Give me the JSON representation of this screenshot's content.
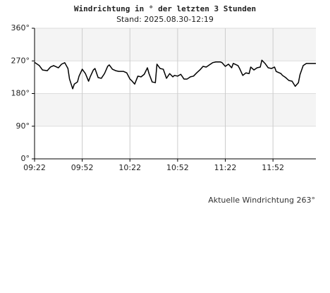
{
  "chart_data": {
    "type": "line",
    "title": "Windrichtung in ° der letzten 3 Stunden",
    "subtitle": "Stand: 2025.08.30-12:19",
    "annotation": "Aktuelle Windrichtung 263°",
    "x": [
      "09:22",
      "09:25",
      "09:27",
      "09:30",
      "09:32",
      "09:34",
      "09:37",
      "09:39",
      "09:41",
      "09:43",
      "09:44",
      "09:46",
      "09:47",
      "09:49",
      "09:50",
      "09:52",
      "09:54",
      "09:56",
      "09:57",
      "09:59",
      "10:00",
      "10:02",
      "10:04",
      "10:06",
      "10:08",
      "10:09",
      "10:11",
      "10:13",
      "10:15",
      "10:18",
      "10:20",
      "10:22",
      "10:23",
      "10:25",
      "10:27",
      "10:29",
      "10:31",
      "10:33",
      "10:34",
      "10:36",
      "10:38",
      "10:39",
      "10:41",
      "10:43",
      "10:45",
      "10:47",
      "10:49",
      "10:50",
      "10:52",
      "10:54",
      "10:56",
      "10:58",
      "11:00",
      "11:02",
      "11:04",
      "11:06",
      "11:08",
      "11:10",
      "11:12",
      "11:14",
      "11:16",
      "11:19",
      "11:20",
      "11:22",
      "11:24",
      "11:26",
      "11:27",
      "11:30",
      "11:31",
      "11:33",
      "11:35",
      "11:37",
      "11:38",
      "11:40",
      "11:42",
      "11:44",
      "11:45",
      "11:47",
      "11:49",
      "11:51",
      "11:53",
      "11:54",
      "11:57",
      "11:58",
      "12:00",
      "12:02",
      "12:04",
      "12:06",
      "12:08",
      "12:09",
      "12:11",
      "12:13",
      "12:15",
      "12:19"
    ],
    "values": [
      266,
      257,
      245,
      243,
      253,
      257,
      251,
      261,
      265,
      249,
      220,
      193,
      206,
      212,
      228,
      247,
      235,
      214,
      226,
      245,
      249,
      224,
      222,
      235,
      255,
      259,
      247,
      243,
      241,
      241,
      237,
      220,
      216,
      206,
      228,
      226,
      233,
      251,
      235,
      212,
      210,
      261,
      249,
      247,
      222,
      235,
      226,
      230,
      228,
      233,
      220,
      220,
      226,
      228,
      237,
      245,
      255,
      253,
      259,
      265,
      267,
      267,
      265,
      255,
      261,
      251,
      263,
      257,
      249,
      230,
      237,
      235,
      253,
      245,
      251,
      253,
      272,
      263,
      251,
      249,
      253,
      241,
      235,
      230,
      224,
      216,
      214,
      200,
      210,
      232,
      257,
      263,
      263,
      263
    ],
    "color": "#000000",
    "xlim": [
      "09:22",
      "12:19"
    ],
    "xticks": [
      "09:22",
      "09:52",
      "10:22",
      "10:52",
      "11:22",
      "11:52"
    ],
    "ylim": [
      0,
      360
    ],
    "yticks": [
      {
        "value": 0,
        "label": "0°"
      },
      {
        "value": 90,
        "label": "90°"
      },
      {
        "value": 180,
        "label": "180°"
      },
      {
        "value": 270,
        "label": "270°"
      },
      {
        "value": 360,
        "label": "360°"
      }
    ],
    "grid": true,
    "band_color": "#f4f4f4"
  }
}
